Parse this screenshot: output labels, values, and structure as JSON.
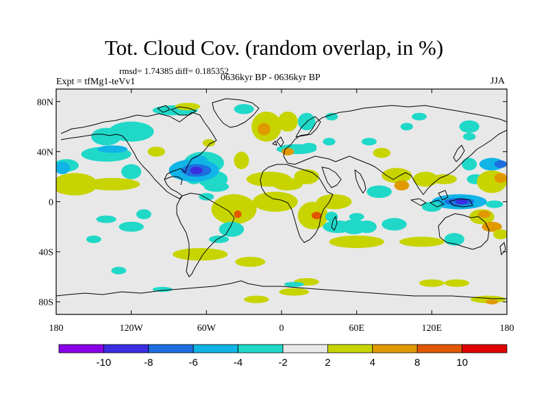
{
  "title": "Tot. Cloud Cov. (random overlap, in %)",
  "stats": "rmsd= 1.74385 diff= 0.185352",
  "experiment": "Expt = tfMg1-teVv1",
  "period": "0636kyr BP - 0636kyr BP",
  "season": "JJA",
  "lon_ticks": [
    {
      "value": 180,
      "label": "180"
    },
    {
      "value": 240,
      "label": "120W"
    },
    {
      "value": 300,
      "label": "60W"
    },
    {
      "value": 360,
      "label": "0"
    },
    {
      "value": 420,
      "label": "60E"
    },
    {
      "value": 480,
      "label": "120E"
    },
    {
      "value": 540,
      "label": "180"
    }
  ],
  "lat_ticks": [
    {
      "value": 80,
      "label": "80N"
    },
    {
      "value": 40,
      "label": "40N"
    },
    {
      "value": 0,
      "label": "0"
    },
    {
      "value": -40,
      "label": "40S"
    },
    {
      "value": -80,
      "label": "80S"
    }
  ],
  "colors": {
    "background": "#e8e8e8",
    "coastline": "#000000",
    "levels": [
      "#8a00e8",
      "#3a2ee0",
      "#1e6ee0",
      "#10b4e6",
      "#20d8c8",
      "#e8e8e8",
      "#c8d400",
      "#e09a00",
      "#e05800",
      "#e00000"
    ]
  },
  "colorbar": {
    "labels": [
      "-10",
      "-8",
      "-6",
      "-4",
      "-2",
      "2",
      "4",
      "8",
      "10"
    ]
  },
  "anomalies": [
    {
      "lon": -172,
      "lat": 13,
      "rx": 10,
      "ry": 7,
      "level": 7
    },
    {
      "lon": -165,
      "lat": 14,
      "rx": 18,
      "ry": 9,
      "level": 6
    },
    {
      "lon": -172,
      "lat": 29,
      "rx": 10,
      "ry": 5,
      "level": 4
    },
    {
      "lon": -135,
      "lat": 14,
      "rx": 22,
      "ry": 5,
      "level": 6
    },
    {
      "lon": -120,
      "lat": 24,
      "rx": 8,
      "ry": 6,
      "level": 4
    },
    {
      "lon": -140,
      "lat": 52,
      "rx": 12,
      "ry": 7,
      "level": 4
    },
    {
      "lon": -120,
      "lat": 56,
      "rx": 18,
      "ry": 8,
      "level": 4
    },
    {
      "lon": -85,
      "lat": 73,
      "rx": 18,
      "ry": 4,
      "level": 4
    },
    {
      "lon": -75,
      "lat": 76,
      "rx": 10,
      "ry": 3,
      "level": 6
    },
    {
      "lon": -100,
      "lat": 40,
      "rx": 7,
      "ry": 4,
      "level": 6
    },
    {
      "lon": -62,
      "lat": 31,
      "rx": 16,
      "ry": 9,
      "level": 4
    },
    {
      "lon": -66,
      "lat": 33,
      "rx": 7,
      "ry": 4,
      "level": 3
    },
    {
      "lon": -55,
      "lat": 18,
      "rx": 12,
      "ry": 7,
      "level": 4
    },
    {
      "lon": -70,
      "lat": 18,
      "rx": 6,
      "ry": 4,
      "level": 4
    },
    {
      "lon": -32,
      "lat": 33,
      "rx": 6,
      "ry": 7,
      "level": 6
    },
    {
      "lon": -58,
      "lat": 47,
      "rx": 5,
      "ry": 3,
      "level": 6
    },
    {
      "lon": -12,
      "lat": 60,
      "rx": 12,
      "ry": 12,
      "level": 6
    },
    {
      "lon": -14,
      "lat": 58,
      "rx": 5,
      "ry": 5,
      "level": 7
    },
    {
      "lon": 5,
      "lat": 64,
      "rx": 8,
      "ry": 8,
      "level": 6
    },
    {
      "lon": 20,
      "lat": 64,
      "rx": 7,
      "ry": 7,
      "level": 4
    },
    {
      "lon": 12,
      "lat": 42,
      "rx": 16,
      "ry": 4,
      "level": 4
    },
    {
      "lon": 5,
      "lat": 40,
      "rx": 5,
      "ry": 3,
      "level": 7
    },
    {
      "lon": 38,
      "lat": 48,
      "rx": 5,
      "ry": 3,
      "level": 4
    },
    {
      "lon": 40,
      "lat": 68,
      "rx": 5,
      "ry": 3,
      "level": 4
    },
    {
      "lon": 70,
      "lat": 48,
      "rx": 6,
      "ry": 3,
      "level": 4
    },
    {
      "lon": 110,
      "lat": 68,
      "rx": 6,
      "ry": 3,
      "level": 4
    },
    {
      "lon": 150,
      "lat": 60,
      "rx": 8,
      "ry": 5,
      "level": 4
    },
    {
      "lon": 80,
      "lat": 39,
      "rx": 7,
      "ry": 4,
      "level": 6
    },
    {
      "lon": -10,
      "lat": 18,
      "rx": 18,
      "ry": 6,
      "level": 6
    },
    {
      "lon": 5,
      "lat": 14,
      "rx": 12,
      "ry": 5,
      "level": 6
    },
    {
      "lon": 20,
      "lat": 20,
      "rx": 10,
      "ry": 6,
      "level": 6
    },
    {
      "lon": -5,
      "lat": 0,
      "rx": 18,
      "ry": 8,
      "level": 6
    },
    {
      "lon": 42,
      "lat": 0,
      "rx": 14,
      "ry": 6,
      "level": 6
    },
    {
      "lon": 78,
      "lat": 8,
      "rx": 10,
      "ry": 5,
      "level": 4
    },
    {
      "lon": 92,
      "lat": 21,
      "rx": 12,
      "ry": 6,
      "level": 6
    },
    {
      "lon": 96,
      "lat": 13,
      "rx": 6,
      "ry": 4,
      "level": 7
    },
    {
      "lon": 115,
      "lat": 18,
      "rx": 10,
      "ry": 6,
      "level": 6
    },
    {
      "lon": 130,
      "lat": 18,
      "rx": 10,
      "ry": 4,
      "level": 6
    },
    {
      "lon": 150,
      "lat": 30,
      "rx": 6,
      "ry": 5,
      "level": 4
    },
    {
      "lon": 155,
      "lat": 18,
      "rx": 7,
      "ry": 4,
      "level": 4
    },
    {
      "lon": 168,
      "lat": 16,
      "rx": 12,
      "ry": 9,
      "level": 6
    },
    {
      "lon": 175,
      "lat": 19,
      "rx": 5,
      "ry": 4,
      "level": 7
    },
    {
      "lon": -38,
      "lat": -6,
      "rx": 18,
      "ry": 12,
      "level": 6
    },
    {
      "lon": -35,
      "lat": -10,
      "rx": 3,
      "ry": 3,
      "level": 8
    },
    {
      "lon": -40,
      "lat": -22,
      "rx": 10,
      "ry": 6,
      "level": 4
    },
    {
      "lon": -65,
      "lat": -42,
      "rx": 22,
      "ry": 5,
      "level": 6
    },
    {
      "lon": -25,
      "lat": -48,
      "rx": 12,
      "ry": 4,
      "level": 6
    },
    {
      "lon": 25,
      "lat": -11,
      "rx": 12,
      "ry": 11,
      "level": 6
    },
    {
      "lon": 28,
      "lat": -11,
      "rx": 4,
      "ry": 3,
      "level": 8
    },
    {
      "lon": 58,
      "lat": -20,
      "rx": 10,
      "ry": 6,
      "level": 4
    },
    {
      "lon": 68,
      "lat": -20,
      "rx": 8,
      "ry": 5,
      "level": 4
    },
    {
      "lon": 60,
      "lat": -32,
      "rx": 22,
      "ry": 5,
      "level": 6
    },
    {
      "lon": 90,
      "lat": -18,
      "rx": 10,
      "ry": 5,
      "level": 4
    },
    {
      "lon": 112,
      "lat": -32,
      "rx": 18,
      "ry": 4,
      "level": 6
    },
    {
      "lon": 138,
      "lat": -30,
      "rx": 8,
      "ry": 5,
      "level": 4
    },
    {
      "lon": 160,
      "lat": -12,
      "rx": 10,
      "ry": 6,
      "level": 6
    },
    {
      "lon": 162,
      "lat": -10,
      "rx": 5,
      "ry": 3,
      "level": 7
    },
    {
      "lon": 168,
      "lat": -20,
      "rx": 8,
      "ry": 4,
      "level": 7
    },
    {
      "lon": 175,
      "lat": -26,
      "rx": 6,
      "ry": 4,
      "level": 6
    },
    {
      "lon": -120,
      "lat": -20,
      "rx": 10,
      "ry": 4,
      "level": 4
    },
    {
      "lon": -150,
      "lat": -30,
      "rx": 6,
      "ry": 3,
      "level": 4
    },
    {
      "lon": -130,
      "lat": -55,
      "rx": 6,
      "ry": 3,
      "level": 4
    },
    {
      "lon": -20,
      "lat": -78,
      "rx": 10,
      "ry": 3,
      "level": 6
    },
    {
      "lon": 10,
      "lat": -72,
      "rx": 12,
      "ry": 3,
      "level": 6
    },
    {
      "lon": 20,
      "lat": -64,
      "rx": 10,
      "ry": 3,
      "level": 6
    },
    {
      "lon": 120,
      "lat": -65,
      "rx": 10,
      "ry": 3,
      "level": 6
    },
    {
      "lon": 140,
      "lat": -65,
      "rx": 10,
      "ry": 3,
      "level": 6
    },
    {
      "lon": 165,
      "lat": -78,
      "rx": 14,
      "ry": 3,
      "level": 6
    },
    {
      "lon": 168,
      "lat": -80,
      "rx": 5,
      "ry": 2,
      "level": 7
    },
    {
      "lon": -140,
      "lat": 38,
      "rx": 20,
      "ry": 6,
      "level": 4
    },
    {
      "lon": -135,
      "lat": 42,
      "rx": 12,
      "ry": 3,
      "level": 3
    },
    {
      "lon": -175,
      "lat": 27,
      "rx": 6,
      "ry": 5,
      "level": 3
    },
    {
      "lon": -70,
      "lat": 25,
      "rx": 20,
      "ry": 9,
      "level": 3
    },
    {
      "lon": -68,
      "lat": 25,
      "rx": 12,
      "ry": 5,
      "level": 2
    },
    {
      "lon": -68,
      "lat": 25,
      "rx": 5,
      "ry": 3,
      "level": 1
    },
    {
      "lon": -52,
      "lat": 12,
      "rx": 10,
      "ry": 4,
      "level": 4
    },
    {
      "lon": -60,
      "lat": 4,
      "rx": 6,
      "ry": 3,
      "level": 4
    },
    {
      "lon": -30,
      "lat": 74,
      "rx": 8,
      "ry": 4,
      "level": 4
    },
    {
      "lon": 170,
      "lat": -2,
      "rx": 7,
      "ry": 3,
      "level": 4
    },
    {
      "lon": -110,
      "lat": -10,
      "rx": 6,
      "ry": 4,
      "level": 4
    },
    {
      "lon": -140,
      "lat": -14,
      "rx": 8,
      "ry": 3,
      "level": 4
    },
    {
      "lon": -50,
      "lat": -30,
      "rx": 8,
      "ry": 3,
      "level": 4
    },
    {
      "lon": 45,
      "lat": -20,
      "rx": 12,
      "ry": 5,
      "level": 4
    },
    {
      "lon": 40,
      "lat": -12,
      "rx": 5,
      "ry": 4,
      "level": 4
    },
    {
      "lon": 142,
      "lat": 0,
      "rx": 22,
      "ry": 6,
      "level": 3
    },
    {
      "lon": 142,
      "lat": 0,
      "rx": 12,
      "ry": 3,
      "level": 2
    },
    {
      "lon": 144,
      "lat": 0,
      "rx": 5,
      "ry": 2,
      "level": 1
    },
    {
      "lon": 120,
      "lat": -4,
      "rx": 8,
      "ry": 4,
      "level": 4
    },
    {
      "lon": 168,
      "lat": 30,
      "rx": 10,
      "ry": 5,
      "level": 3
    },
    {
      "lon": 175,
      "lat": 30,
      "rx": 5,
      "ry": 3,
      "level": 2
    },
    {
      "lon": 150,
      "lat": 52,
      "rx": 5,
      "ry": 3,
      "level": 4
    },
    {
      "lon": 100,
      "lat": 60,
      "rx": 5,
      "ry": 3,
      "level": 4
    },
    {
      "lon": 22,
      "lat": 44,
      "rx": 6,
      "ry": 3,
      "level": 4
    },
    {
      "lon": 10,
      "lat": -66,
      "rx": 8,
      "ry": 2,
      "level": 4
    },
    {
      "lon": -95,
      "lat": -70,
      "rx": 8,
      "ry": 2,
      "level": 4
    },
    {
      "lon": 60,
      "lat": -12,
      "rx": 6,
      "ry": 3,
      "level": 4
    }
  ]
}
